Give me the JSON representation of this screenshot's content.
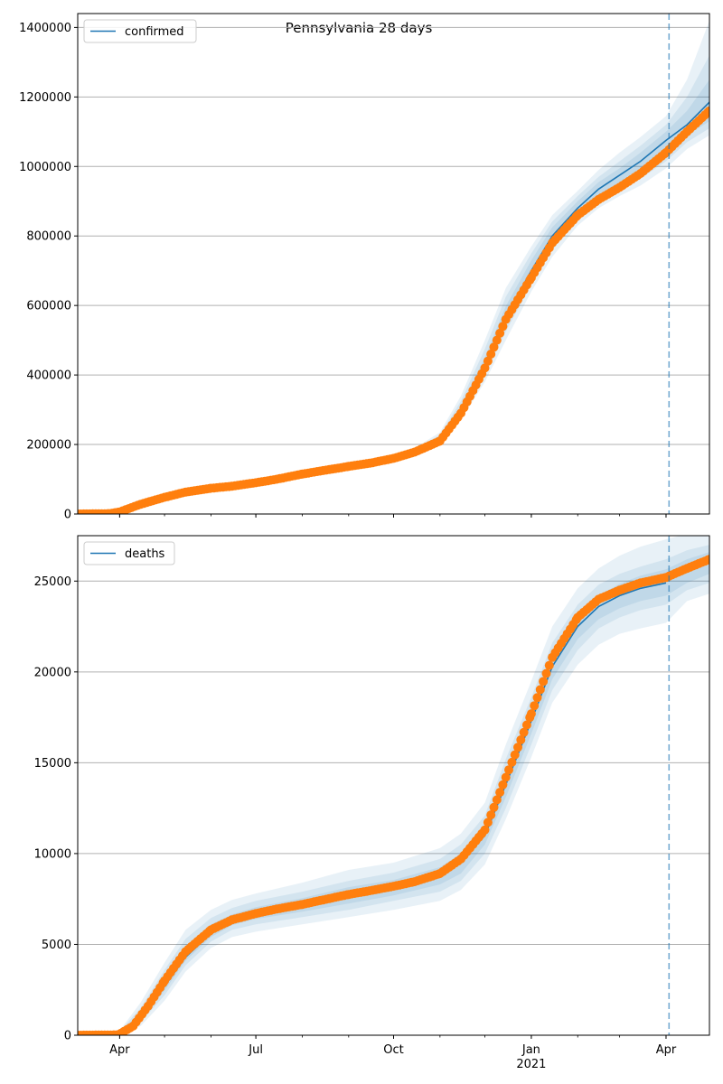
{
  "title": "Pennsylvania 28 days",
  "colors": {
    "model_line": "#1f77b4",
    "observed": "#ff7f0e",
    "band": "#1f77b4",
    "forecast_line": "#1f77b4",
    "grid": "#b0b0b0"
  },
  "x_axis": {
    "ticks": [
      {
        "date": "2020-04-01",
        "label": "Apr"
      },
      {
        "date": "2020-07-01",
        "label": "Jul"
      },
      {
        "date": "2020-10-01",
        "label": "Oct"
      },
      {
        "date": "2021-01-01",
        "label": "Jan",
        "sublabel": "2021"
      },
      {
        "date": "2021-04-01",
        "label": "Apr"
      }
    ],
    "xlim": [
      "2020-03-04",
      "2021-04-30"
    ]
  },
  "chart_data": [
    {
      "type": "line",
      "legend": "confirmed",
      "legend_position": "upper-left",
      "grid": "y",
      "ylim": [
        0,
        1440000
      ],
      "yticks": [
        0,
        200000,
        400000,
        600000,
        800000,
        1000000,
        1200000,
        1400000
      ],
      "forecast_start": "2021-04-03",
      "model": {
        "name": "confirmed",
        "points": [
          [
            "2020-03-04",
            0
          ],
          [
            "2020-03-25",
            1000
          ],
          [
            "2020-04-01",
            6000
          ],
          [
            "2020-04-15",
            28000
          ],
          [
            "2020-05-01",
            48000
          ],
          [
            "2020-05-15",
            63000
          ],
          [
            "2020-06-01",
            74000
          ],
          [
            "2020-06-15",
            80000
          ],
          [
            "2020-07-01",
            90000
          ],
          [
            "2020-07-15",
            100000
          ],
          [
            "2020-08-01",
            115000
          ],
          [
            "2020-08-15",
            125000
          ],
          [
            "2020-09-01",
            137000
          ],
          [
            "2020-09-15",
            146000
          ],
          [
            "2020-10-01",
            160000
          ],
          [
            "2020-10-15",
            180000
          ],
          [
            "2020-11-01",
            215000
          ],
          [
            "2020-11-15",
            300000
          ],
          [
            "2020-12-01",
            430000
          ],
          [
            "2020-12-15",
            570000
          ],
          [
            "2021-01-01",
            700000
          ],
          [
            "2021-01-15",
            800000
          ],
          [
            "2021-02-01",
            880000
          ],
          [
            "2021-02-15",
            935000
          ],
          [
            "2021-03-01",
            975000
          ],
          [
            "2021-03-15",
            1015000
          ],
          [
            "2021-04-01",
            1075000
          ],
          [
            "2021-04-15",
            1120000
          ],
          [
            "2021-04-30",
            1185000
          ]
        ]
      },
      "observed": {
        "points": [
          [
            "2020-03-04",
            0
          ],
          [
            "2020-03-25",
            1000
          ],
          [
            "2020-04-01",
            6000
          ],
          [
            "2020-04-15",
            28000
          ],
          [
            "2020-05-01",
            48000
          ],
          [
            "2020-05-15",
            63000
          ],
          [
            "2020-06-01",
            74000
          ],
          [
            "2020-06-15",
            80000
          ],
          [
            "2020-07-01",
            90000
          ],
          [
            "2020-07-15",
            100000
          ],
          [
            "2020-08-01",
            115000
          ],
          [
            "2020-08-15",
            125000
          ],
          [
            "2020-09-01",
            137000
          ],
          [
            "2020-09-15",
            146000
          ],
          [
            "2020-10-01",
            160000
          ],
          [
            "2020-10-15",
            178000
          ],
          [
            "2020-11-01",
            210000
          ],
          [
            "2020-11-15",
            290000
          ],
          [
            "2020-12-01",
            420000
          ],
          [
            "2020-12-15",
            560000
          ],
          [
            "2021-01-01",
            680000
          ],
          [
            "2021-01-15",
            780000
          ],
          [
            "2021-02-01",
            860000
          ],
          [
            "2021-02-15",
            905000
          ],
          [
            "2021-03-01",
            940000
          ],
          [
            "2021-03-15",
            980000
          ],
          [
            "2021-04-01",
            1040000
          ],
          [
            "2021-04-15",
            1100000
          ],
          [
            "2021-04-30",
            1160000
          ]
        ]
      },
      "bands": {
        "dates": [
          "2020-10-01",
          "2020-10-15",
          "2020-11-01",
          "2020-11-15",
          "2020-12-01",
          "2020-12-15",
          "2021-01-01",
          "2021-01-15",
          "2021-02-01",
          "2021-02-15",
          "2021-03-01",
          "2021-03-15",
          "2021-04-01",
          "2021-04-15",
          "2021-04-30"
        ],
        "levels": [
          {
            "lower": [
              155000,
              172000,
              200000,
              270000,
              380000,
              500000,
              640000,
              740000,
              830000,
              880000,
              915000,
              945000,
              995000,
              1050000,
              1090000
            ],
            "upper": [
              165000,
              190000,
              235000,
              340000,
              500000,
              650000,
              770000,
              860000,
              930000,
              990000,
              1040000,
              1085000,
              1145000,
              1250000,
              1420000
            ]
          },
          {
            "lower": [
              157000,
              175000,
              205000,
              280000,
              400000,
              525000,
              660000,
              760000,
              845000,
              895000,
              935000,
              965000,
              1015000,
              1070000,
              1110000
            ],
            "upper": [
              163000,
              186000,
              228000,
              325000,
              475000,
              625000,
              750000,
              842000,
              915000,
              970000,
              1015000,
              1060000,
              1120000,
              1200000,
              1320000
            ]
          },
          {
            "lower": [
              158000,
              177000,
              209000,
              290000,
              415000,
              545000,
              675000,
              775000,
              860000,
              910000,
              950000,
              985000,
              1040000,
              1090000,
              1130000
            ],
            "upper": [
              162000,
              183000,
              222000,
              312000,
              450000,
              598000,
              730000,
              825000,
              900000,
              955000,
              995000,
              1040000,
              1100000,
              1160000,
              1250000
            ]
          }
        ]
      }
    },
    {
      "type": "line",
      "legend": "deaths",
      "legend_position": "upper-left",
      "grid": "y",
      "ylim": [
        0,
        27500
      ],
      "yticks": [
        0,
        5000,
        10000,
        15000,
        20000,
        25000
      ],
      "forecast_start": "2021-04-03",
      "model": {
        "name": "deaths",
        "points": [
          [
            "2020-03-04",
            0
          ],
          [
            "2020-03-31",
            20
          ],
          [
            "2020-04-10",
            500
          ],
          [
            "2020-04-20",
            1400
          ],
          [
            "2020-05-01",
            2700
          ],
          [
            "2020-05-15",
            4300
          ],
          [
            "2020-06-01",
            5600
          ],
          [
            "2020-06-15",
            6300
          ],
          [
            "2020-07-01",
            6700
          ],
          [
            "2020-07-15",
            6950
          ],
          [
            "2020-08-01",
            7200
          ],
          [
            "2020-08-15",
            7450
          ],
          [
            "2020-09-01",
            7750
          ],
          [
            "2020-09-15",
            7950
          ],
          [
            "2020-10-01",
            8150
          ],
          [
            "2020-10-15",
            8400
          ],
          [
            "2020-11-01",
            8800
          ],
          [
            "2020-11-15",
            9500
          ],
          [
            "2020-12-01",
            11000
          ],
          [
            "2020-12-15",
            13800
          ],
          [
            "2021-01-01",
            17300
          ],
          [
            "2021-01-15",
            20300
          ],
          [
            "2021-02-01",
            22500
          ],
          [
            "2021-02-15",
            23600
          ],
          [
            "2021-03-01",
            24200
          ],
          [
            "2021-03-15",
            24600
          ],
          [
            "2021-04-01",
            24900
          ]
        ]
      },
      "observed": {
        "points": [
          [
            "2020-03-04",
            0
          ],
          [
            "2020-03-31",
            20
          ],
          [
            "2020-04-10",
            500
          ],
          [
            "2020-04-20",
            1600
          ],
          [
            "2020-05-01",
            3000
          ],
          [
            "2020-05-15",
            4600
          ],
          [
            "2020-06-01",
            5800
          ],
          [
            "2020-06-15",
            6350
          ],
          [
            "2020-07-01",
            6700
          ],
          [
            "2020-07-15",
            6950
          ],
          [
            "2020-08-01",
            7200
          ],
          [
            "2020-08-15",
            7450
          ],
          [
            "2020-09-01",
            7750
          ],
          [
            "2020-09-15",
            7950
          ],
          [
            "2020-10-01",
            8200
          ],
          [
            "2020-10-15",
            8450
          ],
          [
            "2020-11-01",
            8900
          ],
          [
            "2020-11-15",
            9700
          ],
          [
            "2020-12-01",
            11300
          ],
          [
            "2020-12-15",
            14200
          ],
          [
            "2021-01-01",
            17700
          ],
          [
            "2021-01-15",
            20800
          ],
          [
            "2021-02-01",
            23000
          ],
          [
            "2021-02-15",
            24000
          ],
          [
            "2021-03-01",
            24500
          ],
          [
            "2021-03-15",
            24900
          ],
          [
            "2021-04-01",
            25200
          ],
          [
            "2021-04-15",
            25700
          ],
          [
            "2021-04-30",
            26200
          ]
        ]
      },
      "bands": {
        "dates": [
          "2020-04-01",
          "2020-04-15",
          "2020-05-01",
          "2020-05-15",
          "2020-06-01",
          "2020-06-15",
          "2020-07-01",
          "2020-08-01",
          "2020-09-01",
          "2020-10-01",
          "2020-11-01",
          "2020-11-15",
          "2020-12-01",
          "2020-12-15",
          "2021-01-01",
          "2021-01-15",
          "2021-02-01",
          "2021-02-15",
          "2021-03-01",
          "2021-03-15",
          "2021-04-01",
          "2021-04-15",
          "2021-04-30"
        ],
        "levels": [
          {
            "lower": [
              50,
              500,
              1900,
              3500,
              4800,
              5400,
              5700,
              6100,
              6500,
              6900,
              7400,
              8000,
              9400,
              11900,
              15300,
              18300,
              20400,
              21500,
              22100,
              22400,
              22700,
              23900,
              24300
            ],
            "upper": [
              250,
              1800,
              4000,
              5800,
              6900,
              7450,
              7800,
              8400,
              9100,
              9500,
              10300,
              11100,
              12800,
              16000,
              19500,
              22500,
              24600,
              25700,
              26400,
              26900,
              27300,
              27600,
              27700
            ]
          },
          {
            "lower": [
              80,
              700,
              2200,
              3850,
              5150,
              5800,
              6100,
              6500,
              6900,
              7400,
              7900,
              8500,
              10000,
              12500,
              16000,
              19000,
              21200,
              22400,
              23000,
              23400,
              23700,
              24500,
              24900
            ],
            "upper": [
              200,
              1500,
              3600,
              5300,
              6450,
              7000,
              7400,
              7900,
              8500,
              8950,
              9700,
              10500,
              12100,
              15200,
              18600,
              21600,
              23700,
              24800,
              25400,
              25800,
              26200,
              26700,
              27000
            ]
          },
          {
            "lower": [
              100,
              900,
              2450,
              4100,
              5400,
              6050,
              6400,
              6800,
              7250,
              7700,
              8300,
              8900,
              10500,
              13100,
              16600,
              19600,
              21800,
              22900,
              23500,
              23900,
              24200,
              24900,
              25400
            ],
            "upper": [
              170,
              1250,
              3200,
              4900,
              6100,
              6650,
              7050,
              7550,
              8150,
              8550,
              9250,
              10000,
              11500,
              14500,
              17900,
              21000,
              23100,
              24200,
              24850,
              25300,
              25650,
              26200,
              26600
            ]
          }
        ]
      }
    }
  ]
}
